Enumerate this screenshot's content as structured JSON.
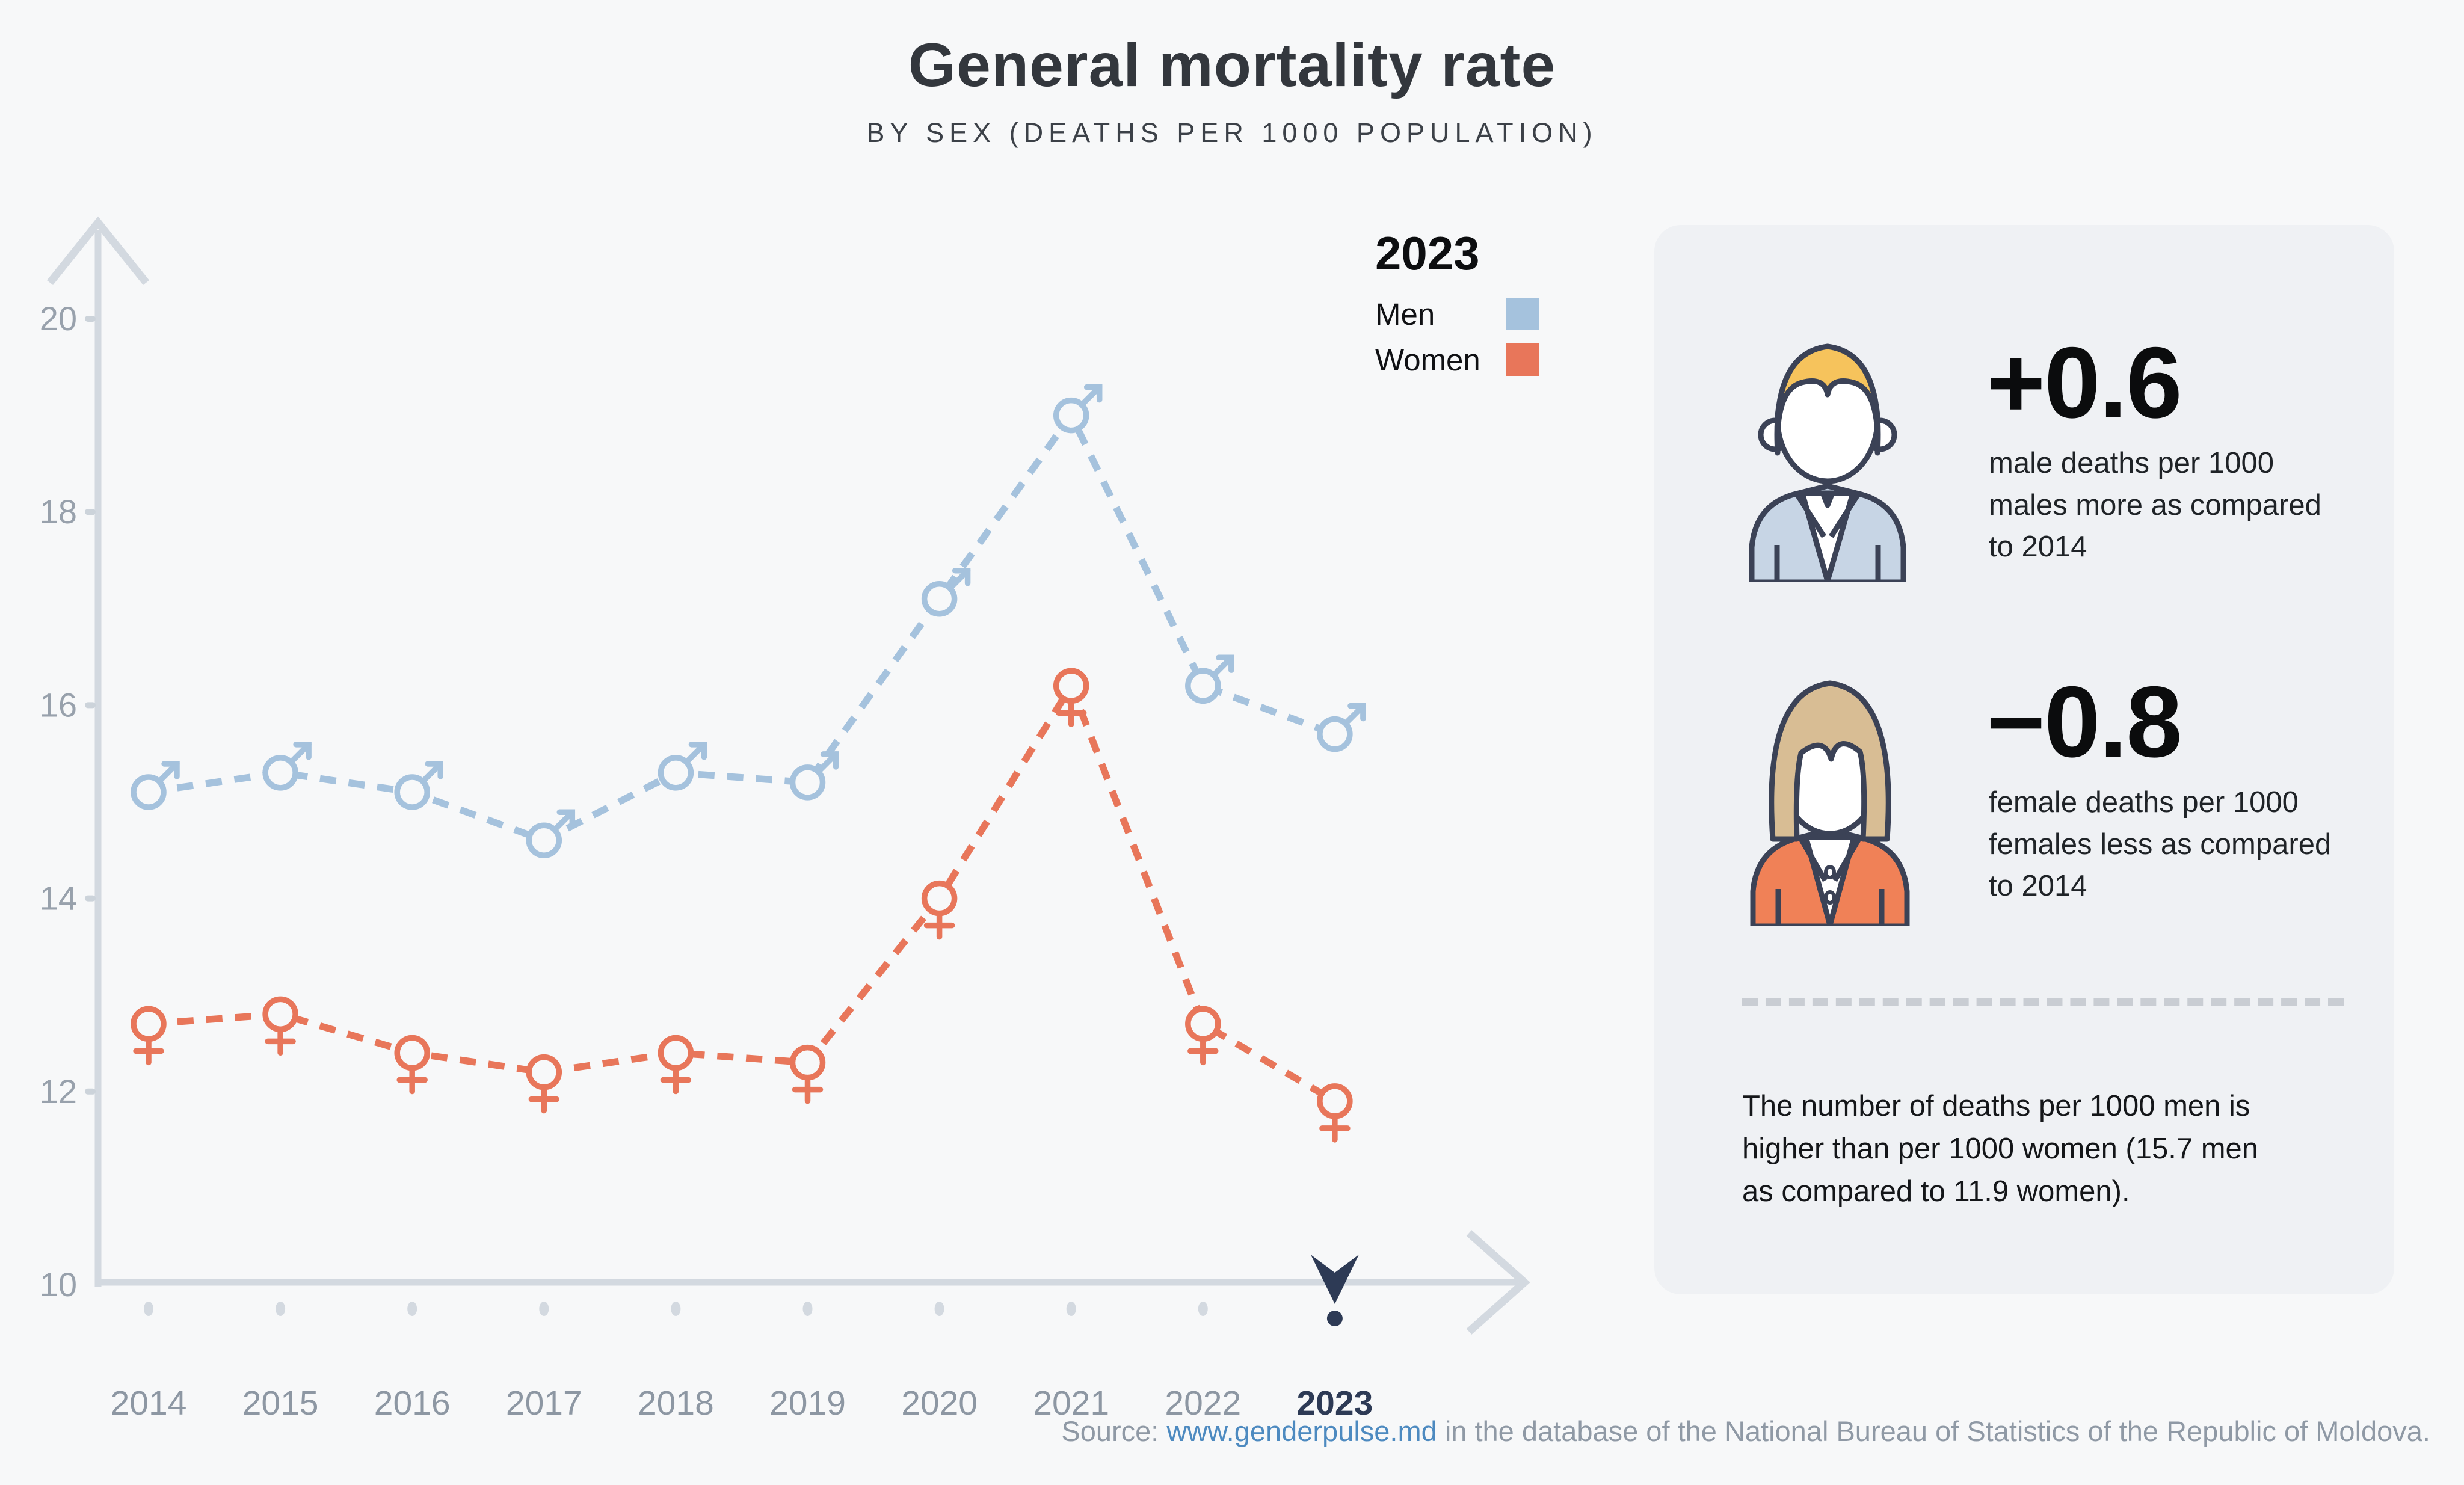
{
  "header": {
    "title": "General mortality rate",
    "subtitle": "BY SEX (DEATHS PER 1000 POPULATION)"
  },
  "legend": {
    "year": "2023",
    "men_label": "Men",
    "women_label": "Women"
  },
  "colors": {
    "page_bg": "#f7f8f9",
    "card_bg": "#eff1f4",
    "men": "#a5c2dd",
    "women": "#e8765a",
    "axis": "#d3d9e0",
    "tick_dash": "#ccd3da",
    "tick_dot": "#d3d9e0",
    "tick_label": "#98a1ac",
    "year_label": "#8d97a3",
    "highlight": "#2d3a55",
    "link": "#4d8ac0"
  },
  "chart_data": {
    "type": "line",
    "line_style": "dashed",
    "grid": false,
    "x": [
      2014,
      2015,
      2016,
      2017,
      2018,
      2019,
      2020,
      2021,
      2022,
      2023
    ],
    "series": [
      {
        "name": "Men",
        "marker": "male",
        "color": "#a5c2dd",
        "values": [
          15.1,
          15.3,
          15.1,
          14.6,
          15.3,
          15.2,
          17.1,
          19.0,
          16.2,
          15.7
        ]
      },
      {
        "name": "Women",
        "marker": "female",
        "color": "#e8765a",
        "values": [
          12.7,
          12.8,
          12.4,
          12.2,
          12.4,
          12.3,
          14.0,
          16.2,
          12.7,
          11.9
        ]
      }
    ],
    "ylim": [
      10,
      21
    ],
    "yticks": [
      10,
      12,
      14,
      16,
      18,
      20
    ],
    "highlight_year": 2023,
    "legend_position": "top-right"
  },
  "panel": {
    "male_stat": {
      "value": "+0.6",
      "description": "male deaths per 1000 males more as compared to 2014"
    },
    "female_stat": {
      "value": "−0.8",
      "description": "female deaths per 1000 females less as compared to 2014"
    },
    "note": "The number of deaths per 1000 men is higher than per 1000 women (15.7 men as compared to 11.9 women)."
  },
  "source": {
    "prefix": "Source: ",
    "link": "www.genderpulse.md",
    "suffix": " in the database of the National Bureau of Statistics of the Republic of Moldova."
  }
}
